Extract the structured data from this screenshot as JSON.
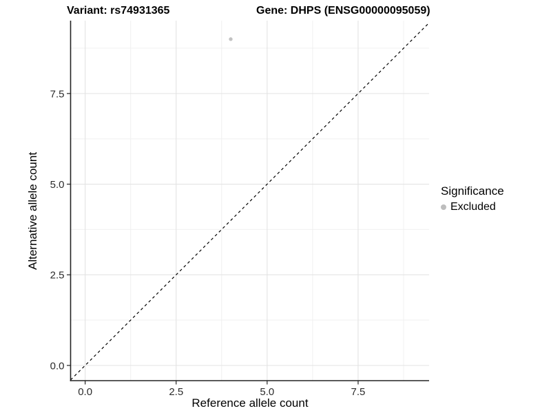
{
  "chart_data": {
    "type": "scatter",
    "titles": {
      "left": "Variant: rs74931365",
      "right": "Gene: DHPS (ENSG00000095059)"
    },
    "xlabel": "Reference allele count",
    "ylabel": "Alternative allele count",
    "xlim": [
      -0.4,
      9.45
    ],
    "ylim": [
      -0.42,
      9.51
    ],
    "x_ticks": {
      "values": [
        0,
        2.5,
        5,
        7.5
      ],
      "labels": [
        "0.0",
        "2.5",
        "5.0",
        "7.5"
      ],
      "minor": [
        1.25,
        3.75,
        6.25,
        8.75
      ]
    },
    "y_ticks": {
      "values": [
        0,
        2.5,
        5,
        7.5
      ],
      "labels": [
        "0.0",
        "2.5",
        "5.0",
        "7.5"
      ],
      "minor": [
        1.25,
        3.75,
        6.25,
        8.75
      ]
    },
    "grid": {
      "major_color": "#e3e3e3",
      "minor_color": "#f0f0f0"
    },
    "axis_line_color": "#222222",
    "reference_line": {
      "slope": 1,
      "intercept": 0,
      "style": "dashed",
      "color": "#000000"
    },
    "series": [
      {
        "name": "Excluded",
        "color": "#c2c2c2",
        "point_radius": 2.7,
        "points": [
          {
            "x": 4,
            "y": 9
          }
        ]
      }
    ],
    "legend": {
      "title": "Significance",
      "position": "right",
      "items": [
        {
          "label": "Excluded",
          "color": "#bdbdbd"
        }
      ]
    }
  }
}
